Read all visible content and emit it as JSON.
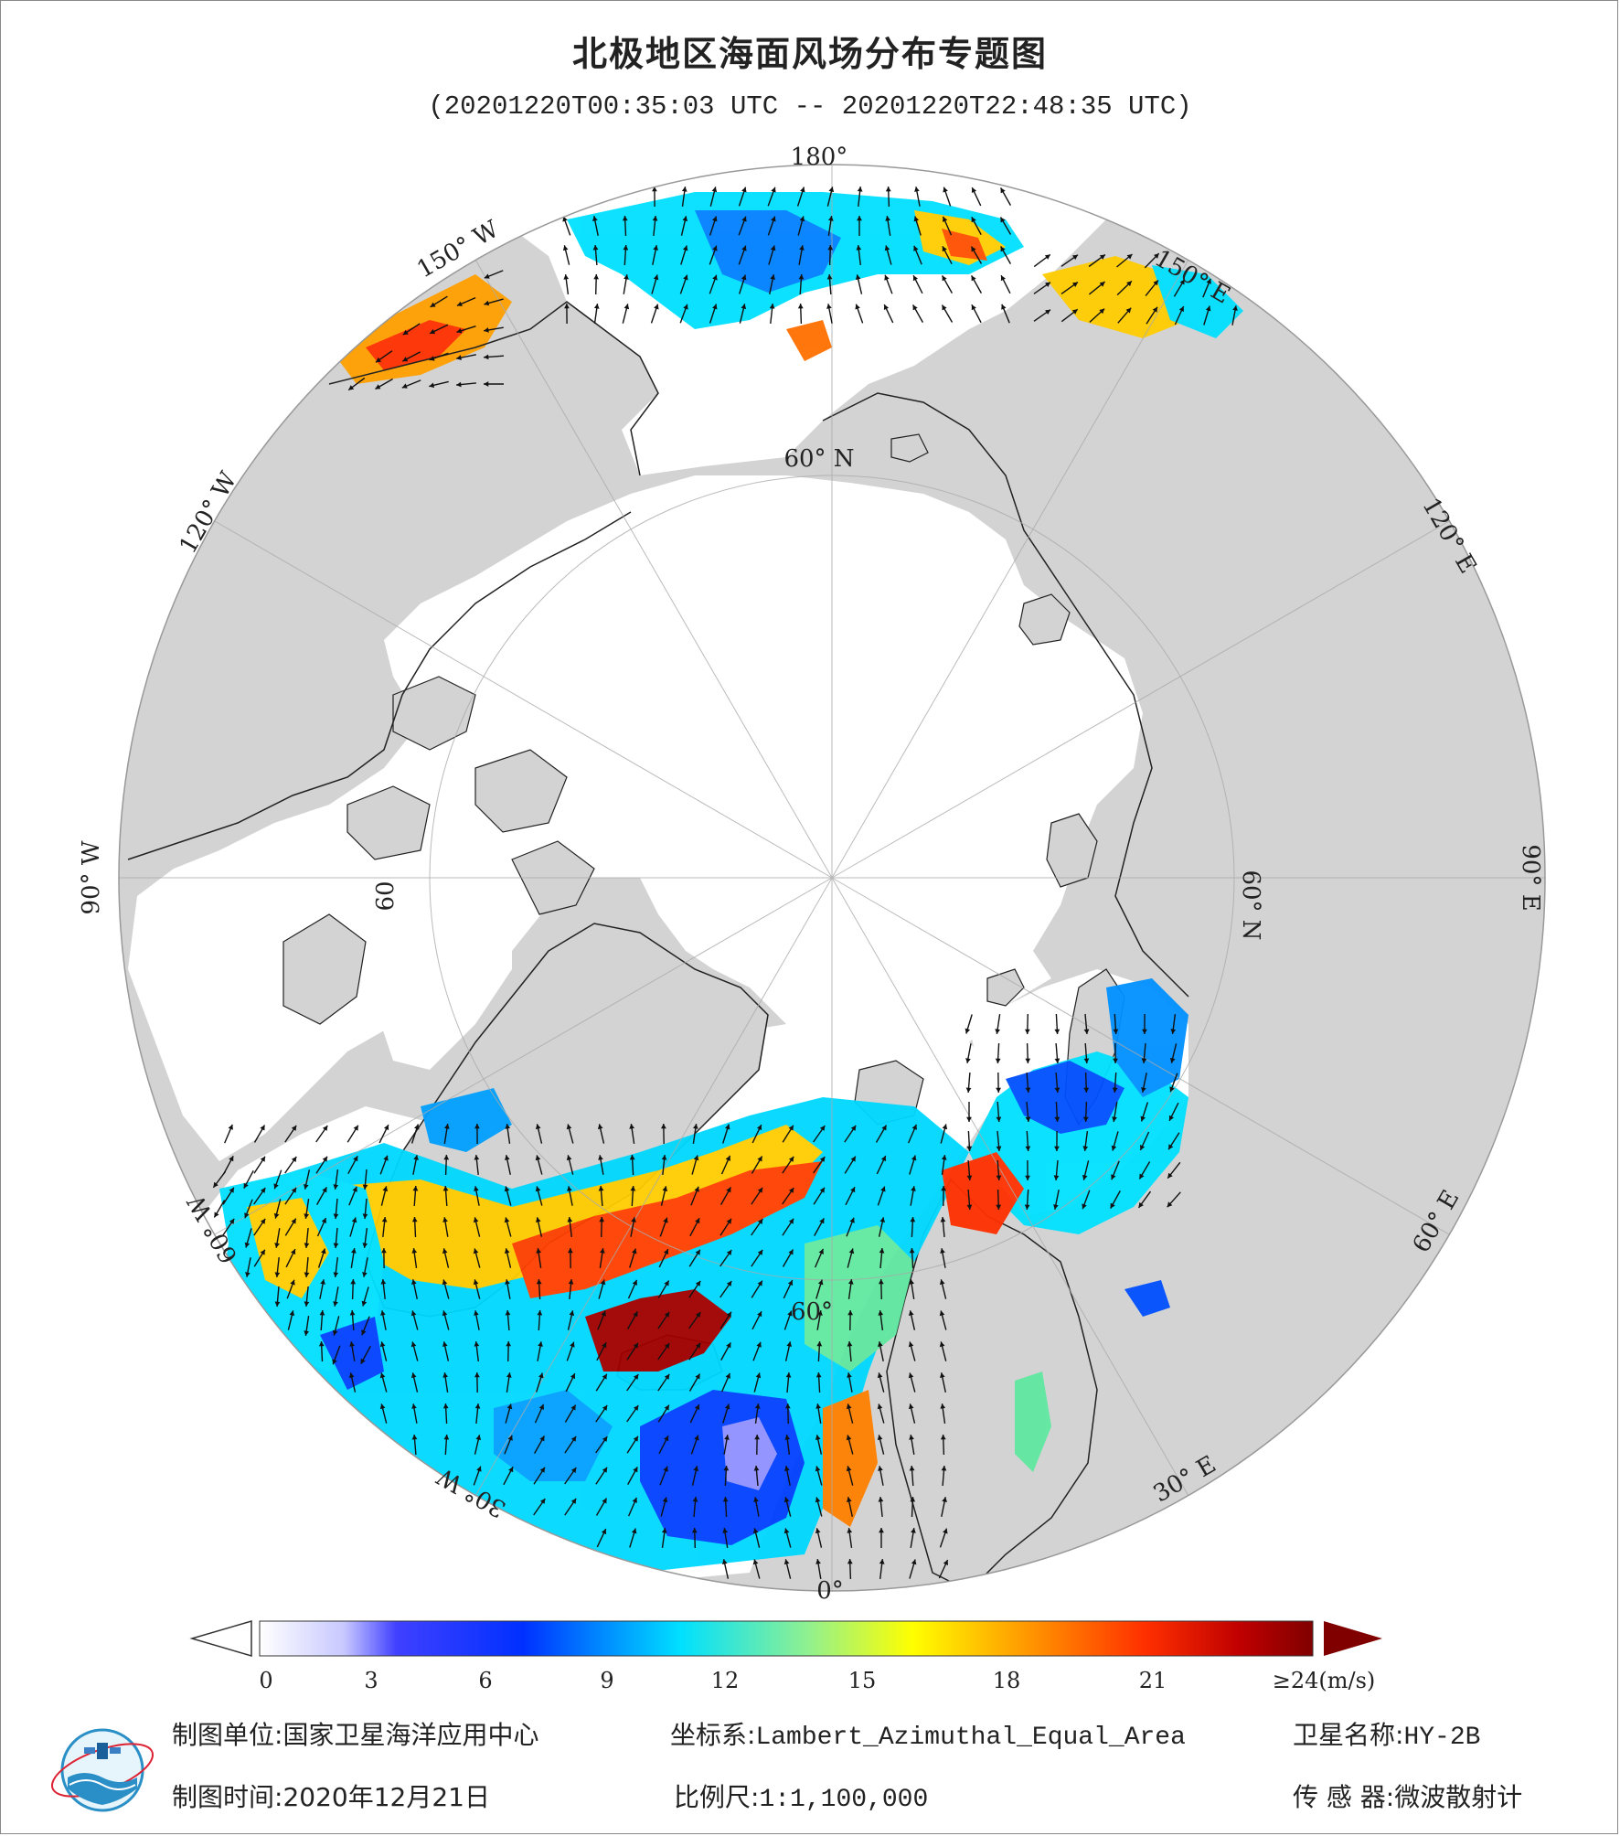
{
  "title": "北极地区海面风场分布专题图",
  "subtitle": "(20201220T00:35:03 UTC -- 20201220T22:48:35 UTC)",
  "map": {
    "longitude_labels": [
      {
        "id": "180",
        "text": "180°"
      },
      {
        "id": "150e",
        "text": "150° E"
      },
      {
        "id": "120e",
        "text": "120° E"
      },
      {
        "id": "90e",
        "text": "90° E"
      },
      {
        "id": "60e",
        "text": "60° E"
      },
      {
        "id": "30e",
        "text": "30° E"
      },
      {
        "id": "0",
        "text": "0°"
      },
      {
        "id": "30w",
        "text": "30° W"
      },
      {
        "id": "60w",
        "text": "60° W"
      },
      {
        "id": "90w",
        "text": "90° W"
      },
      {
        "id": "120w",
        "text": "120° W"
      },
      {
        "id": "150w",
        "text": "150° W"
      }
    ],
    "latitude_labels": [
      {
        "id": "60n-top",
        "text": "60° N"
      },
      {
        "id": "60n-right",
        "text": "60° N"
      },
      {
        "id": "60-bottom",
        "text": "60°"
      },
      {
        "id": "60-left",
        "text": "60"
      }
    ],
    "colors": {
      "land": "#d3d3d3",
      "ocean_ice": "#ffffff",
      "coast": "#222222",
      "arrow": "#111111"
    }
  },
  "colorbar": {
    "unit": "(m/s)",
    "tick_labels": [
      "0",
      "3",
      "6",
      "9",
      "12",
      "15",
      "18",
      "21",
      "≥24(m/s)"
    ],
    "min": 0,
    "max": 24,
    "colors": [
      "#ffffff",
      "#c8c8ff",
      "#4040ff",
      "#0030ff",
      "#0090ff",
      "#00e0ff",
      "#90f090",
      "#ffff00",
      "#ffa000",
      "#ff3000",
      "#c00000",
      "#800000"
    ]
  },
  "footer": {
    "org_label": "制图单位:",
    "org_value": "国家卫星海洋应用中心",
    "crs_label": "坐标系:",
    "crs_value": "Lambert_Azimuthal_Equal_Area",
    "satellite_label": "卫星名称:",
    "satellite_value": "HY-2B",
    "date_label": "制图时间:",
    "date_value": "2020年12月21日",
    "scale_label": "比例尺:",
    "scale_value": "1:1,100,000",
    "sensor_label": "传 感 器:",
    "sensor_value": "微波散射计"
  }
}
